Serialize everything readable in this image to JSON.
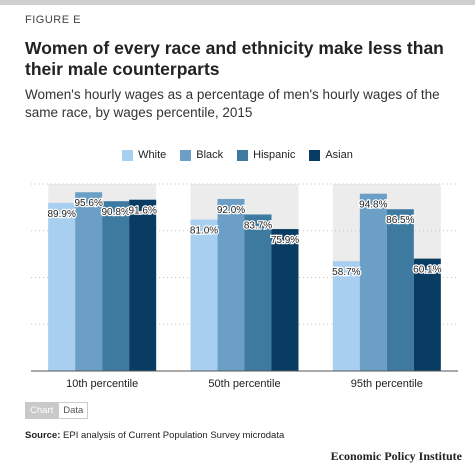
{
  "header": {
    "figure_label": "FIGURE E",
    "title": "Women of every race and ethnicity make less than their male counterparts",
    "subtitle": "Women's hourly wages as a percentage of men's hourly wages of the same race, by wages percentile, 2015"
  },
  "colors": {
    "white": "#a8cfef",
    "black": "#6b9fc6",
    "hispanic": "#3e7a9f",
    "asian": "#083c63",
    "background_band": "#ececec"
  },
  "chart_data": {
    "type": "bar",
    "categories": [
      "10th percentile",
      "50th percentile",
      "95th percentile"
    ],
    "series": [
      {
        "name": "White",
        "values": [
          89.9,
          81.0,
          58.7
        ],
        "labels": [
          "89.9%",
          "81.0%",
          "58.7%"
        ]
      },
      {
        "name": "Black",
        "values": [
          95.6,
          92.0,
          94.8
        ],
        "labels": [
          "95.6%",
          "92.0%",
          "94.8%"
        ]
      },
      {
        "name": "Hispanic",
        "values": [
          90.8,
          83.7,
          86.5
        ],
        "labels": [
          "90.8%",
          "83.7%",
          "86.5%"
        ]
      },
      {
        "name": "Asian",
        "values": [
          91.6,
          75.9,
          60.1
        ],
        "labels": [
          "91.6%",
          "75.9%",
          "60.1%"
        ]
      }
    ],
    "ylim": [
      0,
      100
    ],
    "grid": true,
    "legend_position": "top-center"
  },
  "controls": {
    "chart_tab": "Chart",
    "data_tab": "Data"
  },
  "footer": {
    "source_label": "Source:",
    "source_text": "EPI analysis of Current Population Survey microdata",
    "brand": "Economic Policy Institute"
  }
}
